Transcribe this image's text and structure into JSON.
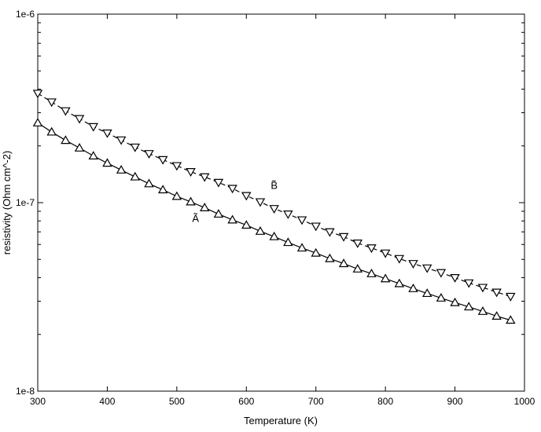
{
  "chart_data": {
    "type": "line",
    "title": "",
    "xlabel": "Temperature (K)",
    "ylabel": "resistivity (Ohm cm^-2)",
    "xlim": [
      300,
      1000
    ],
    "ylim": [
      1e-08,
      1e-06
    ],
    "yscale": "log",
    "grid": false,
    "x_ticks": [
      300,
      400,
      500,
      600,
      700,
      800,
      900,
      1000
    ],
    "x_tick_labels": [
      "300",
      "400",
      "500",
      "600",
      "700",
      "800",
      "900",
      "1000"
    ],
    "y_ticks": [
      1e-08,
      1e-07,
      1e-06
    ],
    "y_tick_labels": [
      "1e-8",
      "1e-7",
      "1e-6"
    ],
    "series": [
      {
        "name": "B̃",
        "marker": "triangle-down",
        "line_style": "dashed",
        "color": "#000000",
        "label_at": [
          640,
          1.18e-07
        ],
        "x": [
          300,
          320,
          340,
          360,
          380,
          400,
          420,
          440,
          460,
          480,
          500,
          520,
          540,
          560,
          580,
          600,
          620,
          640,
          660,
          680,
          700,
          720,
          740,
          760,
          780,
          800,
          820,
          840,
          860,
          880,
          900,
          920,
          940,
          960,
          980
        ],
        "values": [
          3.8e-07,
          3.42e-07,
          3.07e-07,
          2.79e-07,
          2.53e-07,
          2.34e-07,
          2.15e-07,
          1.97e-07,
          1.82e-07,
          1.69e-07,
          1.57e-07,
          1.46e-07,
          1.37e-07,
          1.28e-07,
          1.19e-07,
          1.09e-07,
          1.01e-07,
          9.3e-08,
          8.7e-08,
          8.1e-08,
          7.5e-08,
          7e-08,
          6.6e-08,
          6.1e-08,
          5.75e-08,
          5.4e-08,
          5.05e-08,
          4.75e-08,
          4.5e-08,
          4.25e-08,
          4e-08,
          3.75e-08,
          3.55e-08,
          3.35e-08,
          3.18e-08
        ]
      },
      {
        "name": "Ã",
        "marker": "triangle-up",
        "line_style": "solid",
        "color": "#000000",
        "label_at": [
          527,
          7.9e-08
        ],
        "x": [
          300,
          320,
          340,
          360,
          380,
          400,
          420,
          440,
          460,
          480,
          500,
          520,
          540,
          560,
          580,
          600,
          620,
          640,
          660,
          680,
          700,
          720,
          740,
          760,
          780,
          800,
          820,
          840,
          860,
          880,
          900,
          920,
          940,
          960,
          980
        ],
        "values": [
          2.65e-07,
          2.37e-07,
          2.14e-07,
          1.95e-07,
          1.77e-07,
          1.62e-07,
          1.49e-07,
          1.37e-07,
          1.26e-07,
          1.17e-07,
          1.08e-07,
          1.01e-07,
          9.4e-08,
          8.7e-08,
          8.1e-08,
          7.6e-08,
          7.05e-08,
          6.6e-08,
          6.15e-08,
          5.75e-08,
          5.4e-08,
          5.05e-08,
          4.75e-08,
          4.45e-08,
          4.2e-08,
          3.95e-08,
          3.72e-08,
          3.5e-08,
          3.3e-08,
          3.12e-08,
          2.95e-08,
          2.8e-08,
          2.65e-08,
          2.5e-08,
          2.38e-08
        ]
      }
    ]
  }
}
